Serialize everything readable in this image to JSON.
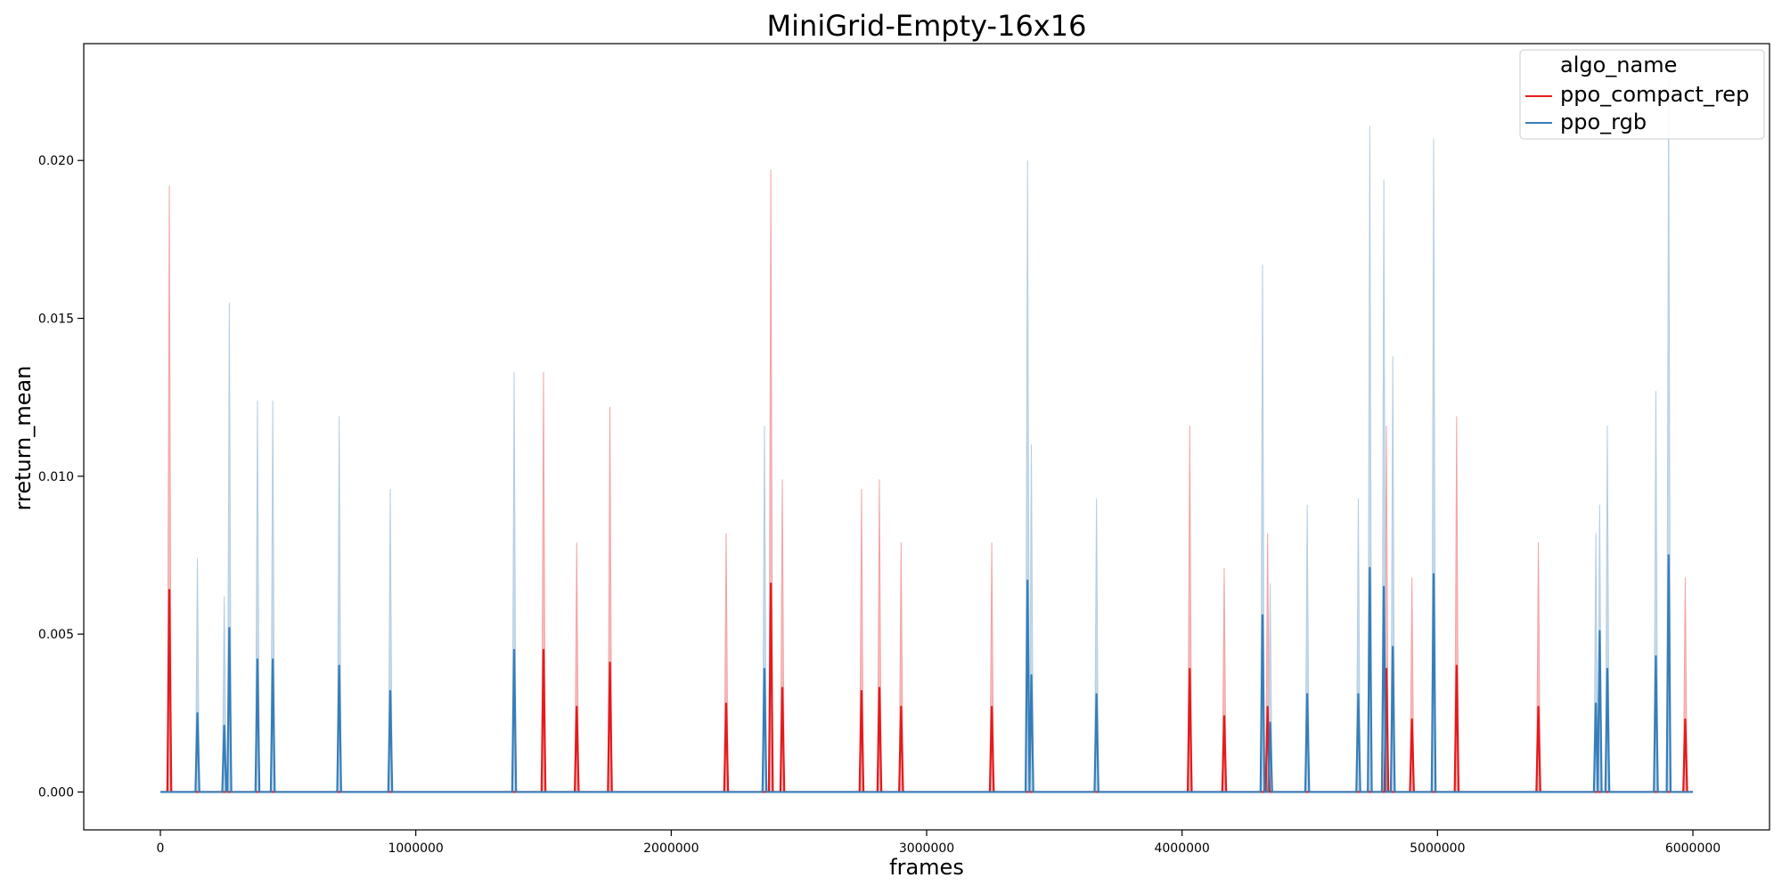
{
  "chart_data": {
    "type": "line",
    "title": "MiniGrid-Empty-16x16",
    "xlabel": "frames",
    "ylabel": "rreturn_mean",
    "xlim": [
      -300000,
      6300000
    ],
    "ylim": [
      -0.0012,
      0.0237
    ],
    "xticks": [
      0,
      1000000,
      2000000,
      3000000,
      4000000,
      5000000,
      6000000
    ],
    "xtick_labels": [
      "0",
      "1000000",
      "2000000",
      "3000000",
      "4000000",
      "5000000",
      "6000000"
    ],
    "yticks": [
      0.0,
      0.005,
      0.01,
      0.015,
      0.02
    ],
    "ytick_labels": [
      "0.000",
      "0.005",
      "0.010",
      "0.015",
      "0.020"
    ],
    "x_range": [
      0,
      6000000
    ],
    "grid": false,
    "legend": {
      "title": "algo_name",
      "position": "top-right"
    },
    "series": [
      {
        "name": "ppo_compact_rep",
        "color": "#e41a1c",
        "band_color": "#f4a3a4",
        "spikes": [
          {
            "x": 35000,
            "mean": 0.0064,
            "upper": 0.0192
          },
          {
            "x": 1500000,
            "mean": 0.0045,
            "upper": 0.0133
          },
          {
            "x": 1630000,
            "mean": 0.0027,
            "upper": 0.0079
          },
          {
            "x": 1760000,
            "mean": 0.0041,
            "upper": 0.0122
          },
          {
            "x": 2215000,
            "mean": 0.0028,
            "upper": 0.0082
          },
          {
            "x": 2390000,
            "mean": 0.0066,
            "upper": 0.0197
          },
          {
            "x": 2435000,
            "mean": 0.0033,
            "upper": 0.0099
          },
          {
            "x": 2745000,
            "mean": 0.0032,
            "upper": 0.0096
          },
          {
            "x": 2815000,
            "mean": 0.0033,
            "upper": 0.0099
          },
          {
            "x": 2900000,
            "mean": 0.0027,
            "upper": 0.0079
          },
          {
            "x": 3255000,
            "mean": 0.0027,
            "upper": 0.0079
          },
          {
            "x": 4030000,
            "mean": 0.0039,
            "upper": 0.0116
          },
          {
            "x": 4165000,
            "mean": 0.0024,
            "upper": 0.0071
          },
          {
            "x": 4335000,
            "mean": 0.0027,
            "upper": 0.0082
          },
          {
            "x": 4800000,
            "mean": 0.0039,
            "upper": 0.0116
          },
          {
            "x": 4900000,
            "mean": 0.0023,
            "upper": 0.0068
          },
          {
            "x": 5075000,
            "mean": 0.004,
            "upper": 0.0119
          },
          {
            "x": 5395000,
            "mean": 0.0027,
            "upper": 0.0079
          },
          {
            "x": 5970000,
            "mean": 0.0023,
            "upper": 0.0068
          }
        ]
      },
      {
        "name": "ppo_rgb",
        "color": "#377eb8",
        "band_color": "#b3cde3",
        "spikes": [
          {
            "x": 145000,
            "mean": 0.0025,
            "upper": 0.0074
          },
          {
            "x": 250000,
            "mean": 0.0021,
            "upper": 0.0062
          },
          {
            "x": 270000,
            "mean": 0.0052,
            "upper": 0.0155
          },
          {
            "x": 380000,
            "mean": 0.0042,
            "upper": 0.0124
          },
          {
            "x": 440000,
            "mean": 0.0042,
            "upper": 0.0124
          },
          {
            "x": 700000,
            "mean": 0.004,
            "upper": 0.0119
          },
          {
            "x": 900000,
            "mean": 0.0032,
            "upper": 0.0096
          },
          {
            "x": 1385000,
            "mean": 0.0045,
            "upper": 0.0133
          },
          {
            "x": 2365000,
            "mean": 0.0039,
            "upper": 0.0116
          },
          {
            "x": 3395000,
            "mean": 0.0067,
            "upper": 0.02
          },
          {
            "x": 3410000,
            "mean": 0.0037,
            "upper": 0.011
          },
          {
            "x": 3665000,
            "mean": 0.0031,
            "upper": 0.0093
          },
          {
            "x": 4315000,
            "mean": 0.0056,
            "upper": 0.0167
          },
          {
            "x": 4345000,
            "mean": 0.0022,
            "upper": 0.0066
          },
          {
            "x": 4490000,
            "mean": 0.0031,
            "upper": 0.0091
          },
          {
            "x": 4690000,
            "mean": 0.0031,
            "upper": 0.0093
          },
          {
            "x": 4735000,
            "mean": 0.0071,
            "upper": 0.0211
          },
          {
            "x": 4790000,
            "mean": 0.0065,
            "upper": 0.0194
          },
          {
            "x": 4825000,
            "mean": 0.0046,
            "upper": 0.0138
          },
          {
            "x": 4985000,
            "mean": 0.0069,
            "upper": 0.0207
          },
          {
            "x": 5620000,
            "mean": 0.0028,
            "upper": 0.0082
          },
          {
            "x": 5635000,
            "mean": 0.0051,
            "upper": 0.0091
          },
          {
            "x": 5665000,
            "mean": 0.0039,
            "upper": 0.0116
          },
          {
            "x": 5855000,
            "mean": 0.0043,
            "upper": 0.0127
          },
          {
            "x": 5905000,
            "mean": 0.0075,
            "upper": 0.0225
          }
        ]
      }
    ]
  }
}
